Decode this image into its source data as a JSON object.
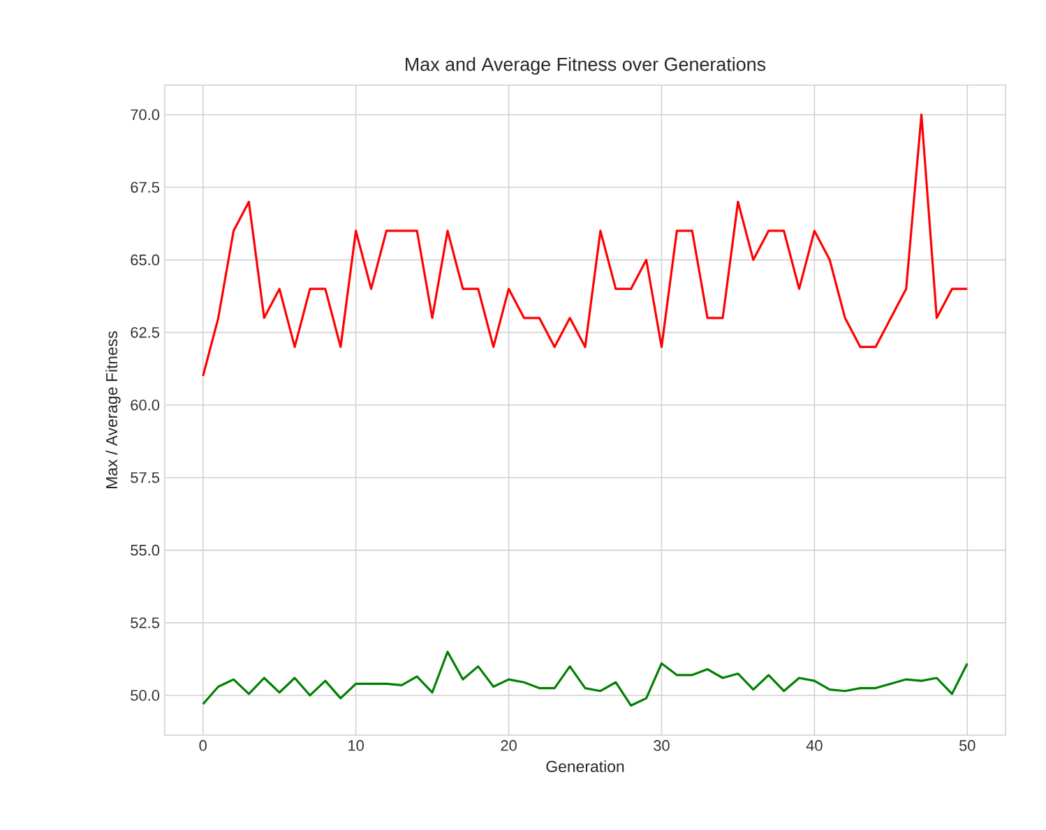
{
  "chart_data": {
    "type": "line",
    "title": "Max and Average Fitness over Generations",
    "xlabel": "Generation",
    "ylabel": "Max / Average Fitness",
    "x": [
      0,
      1,
      2,
      3,
      4,
      5,
      6,
      7,
      8,
      9,
      10,
      11,
      12,
      13,
      14,
      15,
      16,
      17,
      18,
      19,
      20,
      21,
      22,
      23,
      24,
      25,
      26,
      27,
      28,
      29,
      30,
      31,
      32,
      33,
      34,
      35,
      36,
      37,
      38,
      39,
      40,
      41,
      42,
      43,
      44,
      45,
      46,
      47,
      48,
      49,
      50
    ],
    "series": [
      {
        "color": "#ff0000",
        "values": [
          61,
          63,
          66,
          67,
          63,
          64,
          62,
          64,
          64,
          62,
          66,
          64,
          66,
          66,
          66,
          63,
          66,
          64,
          64,
          62,
          64,
          63,
          63,
          62,
          63,
          62,
          66,
          64,
          64,
          65,
          62,
          66,
          66,
          63,
          63,
          67,
          65,
          66,
          66,
          64,
          66,
          65,
          63,
          62,
          62,
          63,
          64,
          70,
          63,
          64,
          64
        ]
      },
      {
        "color": "#008000",
        "values": [
          49.7,
          50.3,
          50.55,
          50.05,
          50.6,
          50.1,
          50.6,
          50.0,
          50.5,
          49.9,
          50.4,
          50.4,
          50.4,
          50.35,
          50.65,
          50.1,
          51.5,
          50.55,
          51.0,
          50.3,
          50.55,
          50.45,
          50.25,
          50.25,
          51.0,
          50.25,
          50.15,
          50.45,
          49.65,
          49.9,
          51.1,
          50.7,
          50.7,
          50.9,
          50.6,
          50.75,
          50.2,
          50.7,
          50.15,
          50.6,
          50.5,
          50.2,
          50.15,
          50.25,
          50.25,
          50.4,
          50.55,
          50.5,
          50.6,
          50.05,
          51.1
        ]
      }
    ],
    "xlim": [
      -2.5,
      52.5
    ],
    "ylim": [
      48.63,
      71.02
    ],
    "xticks": [
      0,
      10,
      20,
      30,
      40,
      50
    ],
    "yticks": [
      {
        "value": 50,
        "label": "50.0"
      },
      {
        "value": 52.5,
        "label": "52.5"
      },
      {
        "value": 55,
        "label": "55.0"
      },
      {
        "value": 57.5,
        "label": "57.5"
      },
      {
        "value": 60,
        "label": "60.0"
      },
      {
        "value": 62.5,
        "label": "62.5"
      },
      {
        "value": 65,
        "label": "65.0"
      },
      {
        "value": 67.5,
        "label": "67.5"
      },
      {
        "value": 70,
        "label": "70.0"
      }
    ],
    "grid": true
  }
}
